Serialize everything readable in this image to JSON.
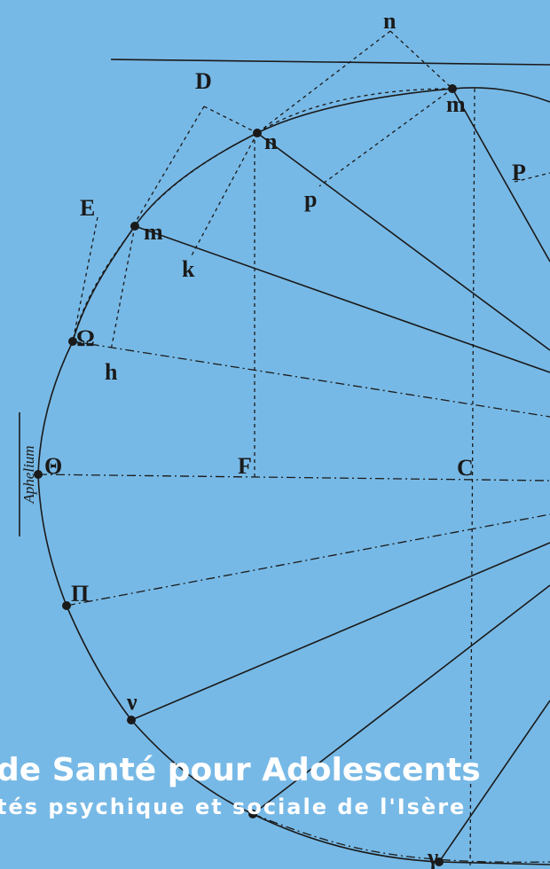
{
  "header": {
    "title": "de Santé pour Adolescents",
    "subtitle": "tés psychique et sociale de l'Isère"
  },
  "diagram": {
    "side_label": "Aphelium",
    "labels": [
      "n",
      "D",
      "m",
      "n",
      "p",
      "P",
      "E",
      "m",
      "k",
      "Ω",
      "h",
      "Θ",
      "F",
      "C",
      "Π",
      "ν",
      "γ"
    ]
  }
}
